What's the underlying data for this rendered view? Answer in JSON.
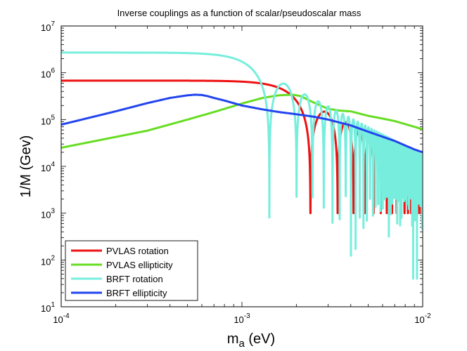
{
  "chart_data": {
    "type": "line",
    "title": "Inverse couplings as a function of scalar/pseudoscalar mass",
    "xlabel_main": "m",
    "xlabel_sub": "a",
    "xlabel_unit": " (eV)",
    "ylabel": "1/M  (Gev)",
    "xscale": "log",
    "yscale": "log",
    "xlim": [
      0.0001,
      0.01
    ],
    "ylim": [
      10,
      10000000
    ],
    "x_ticks": [
      {
        "value": 0.0001,
        "base": "10",
        "exp": "-4"
      },
      {
        "value": 0.001,
        "base": "10",
        "exp": "-3"
      },
      {
        "value": 0.01,
        "base": "10",
        "exp": "-2"
      }
    ],
    "y_ticks": [
      {
        "value": 10,
        "base": "10",
        "exp": "1"
      },
      {
        "value": 100,
        "base": "10",
        "exp": "2"
      },
      {
        "value": 1000,
        "base": "10",
        "exp": "3"
      },
      {
        "value": 10000,
        "base": "10",
        "exp": "4"
      },
      {
        "value": 100000,
        "base": "10",
        "exp": "5"
      },
      {
        "value": 1000000,
        "base": "10",
        "exp": "6"
      },
      {
        "value": 10000000,
        "base": "10",
        "exp": "7"
      }
    ],
    "legend_position": "bottom-left",
    "series": [
      {
        "name": "PVLAS rotation",
        "color": "#ee1111",
        "model": "oscillating-plateau",
        "x_range": [
          0.0001,
          0.01
        ],
        "plateau": 680000,
        "mass_scale": 0.00135,
        "floor_min": 1000
      },
      {
        "name": "PVLAS ellipticity",
        "color": "#66dd22",
        "x": [
          0.0001,
          0.0003,
          0.0005,
          0.0007,
          0.001,
          0.0013,
          0.0016,
          0.0019,
          0.0021,
          0.0025,
          0.003,
          0.0035,
          0.004,
          0.005,
          0.006,
          0.007,
          0.008,
          0.009,
          0.01
        ],
        "values": [
          25000,
          58000,
          100000,
          145000,
          220000,
          290000,
          330000,
          340000,
          320000,
          230000,
          170000,
          155000,
          150000,
          120000,
          105000,
          93000,
          80000,
          70000,
          62000
        ]
      },
      {
        "name": "BRFT rotation",
        "color": "#77eedd",
        "model": "oscillating-plateau",
        "x_range": [
          0.0001,
          0.01
        ],
        "plateau": 2700000,
        "mass_scale": 0.0008,
        "floor_min": 40
      },
      {
        "name": "BRFT ellipticity",
        "color": "#2244ee",
        "x": [
          0.0001,
          0.0002,
          0.0003,
          0.0004,
          0.0005,
          0.00055,
          0.0006,
          0.00065,
          0.0007,
          0.0008,
          0.001,
          0.0013,
          0.0016,
          0.002,
          0.0025,
          0.003,
          0.004,
          0.005,
          0.006,
          0.007,
          0.008,
          0.009,
          0.01
        ],
        "values": [
          78000,
          150000,
          225000,
          290000,
          330000,
          340000,
          335000,
          315000,
          290000,
          255000,
          200000,
          165000,
          145000,
          130000,
          115000,
          100000,
          75000,
          55000,
          43000,
          35000,
          28000,
          23000,
          20000
        ]
      }
    ]
  }
}
